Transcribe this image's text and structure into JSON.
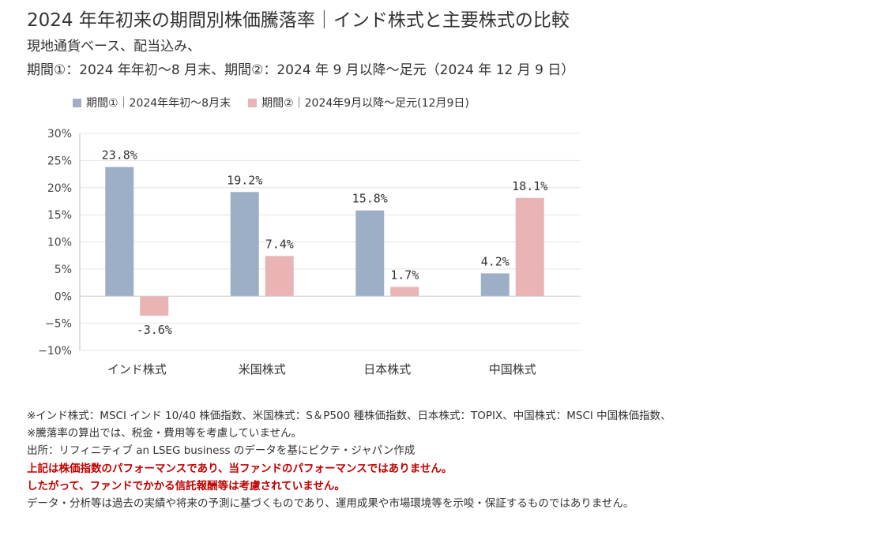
{
  "title": "2024 年年初来の期間別株価騰落率｜インド株式と主要株式の比較",
  "subtitle": {
    "line1": "現地通貨ベース、配当込み、",
    "line2": "期間①：2024 年年初～8 月末、期間②：2024 年 9 月以降～足元（2024 年 12 月 9 日）"
  },
  "colors": {
    "series1": "#9dafc6",
    "series2": "#e9b4b3",
    "warn": "#c00000",
    "grid": "#e4e4e4",
    "axis": "#bfbfbf"
  },
  "chart_data": {
    "type": "bar",
    "categories": [
      "インド株式",
      "米国株式",
      "日本株式",
      "中国株式"
    ],
    "series": [
      {
        "name": "期間①｜2024年年初～8月末",
        "values": [
          23.8,
          19.2,
          15.8,
          4.2
        ],
        "labels": [
          "23.8%",
          "19.2%",
          "15.8%",
          "4.2%"
        ]
      },
      {
        "name": "期間②｜2024年9月以降～足元(12月9日)",
        "values": [
          -3.6,
          7.4,
          1.7,
          18.1
        ],
        "labels": [
          "-3.6%",
          "7.4%",
          "1.7%",
          "18.1%"
        ]
      }
    ],
    "ylim": [
      -10,
      30
    ],
    "yticks": [
      30,
      25,
      20,
      15,
      10,
      5,
      0,
      -5,
      -10
    ],
    "ytick_labels": [
      "30%",
      "25%",
      "20%",
      "15%",
      "10%",
      "5%",
      "0%",
      "−5%",
      "−10%"
    ],
    "grid": true,
    "legend": "top"
  },
  "notes": [
    "※インド株式：MSCI インド 10/40 株価指数、米国株式：S＆P500 種株価指数、日本株式：TOPIX、中国株式：MSCI 中国株価指数、",
    "※騰落率の算出では、税金・費用等を考慮していません。",
    "出所：リフィニティブ an LSEG business のデータを基にピクテ・ジャパン作成"
  ],
  "warnings": [
    "上記は株価指数のパフォーマンスであり、当ファンドのパフォーマンスではありません。",
    "したがって、ファンドでかかる信託報酬等は考慮されていません。"
  ],
  "disclaimer": "データ・分析等は過去の実績や将来の予測に基づくものであり、運用成果や市場環境等を示唆・保証するものではありません。"
}
